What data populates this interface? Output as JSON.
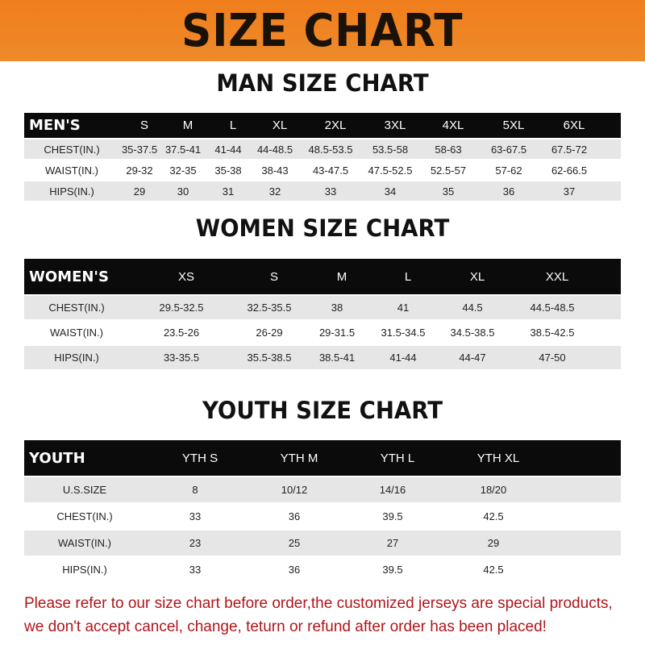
{
  "banner": {
    "title": "SIZE CHART"
  },
  "colors": {
    "banner": "#f07e1c",
    "header_row": "#0b0b0b",
    "note_text": "#b0151a"
  },
  "men": {
    "title": "MAN SIZE CHART",
    "header": [
      "MEN'S",
      "S",
      "M",
      "L",
      "XL",
      "2XL",
      "3XL",
      "4XL",
      "5XL",
      "6XL"
    ],
    "rows": [
      [
        "CHEST(IN.)",
        "35-37.5",
        "37.5-41",
        "41-44",
        "44-48.5",
        "48.5-53.5",
        "53.5-58",
        "58-63",
        "63-67.5",
        "67.5-72"
      ],
      [
        "WAIST(IN.)",
        "29-32",
        "32-35",
        "35-38",
        "38-43",
        "43-47.5",
        "47.5-52.5",
        "52.5-57",
        "57-62",
        "62-66.5"
      ],
      [
        "HIPS(IN.)",
        "29",
        "30",
        "31",
        "32",
        "33",
        "34",
        "35",
        "36",
        "37"
      ]
    ]
  },
  "women": {
    "title": "WOMEN SIZE CHART",
    "header": [
      "WOMEN'S",
      "XS",
      "S",
      "M",
      "L",
      "XL",
      "XXL"
    ],
    "rows": [
      [
        "CHEST(IN.)",
        "29.5-32.5",
        "32.5-35.5",
        "38",
        "41",
        "44.5",
        "44.5-48.5"
      ],
      [
        "WAIST(IN.)",
        "23.5-26",
        "26-29",
        "29-31.5",
        "31.5-34.5",
        "34.5-38.5",
        "38.5-42.5"
      ],
      [
        "HIPS(IN.)",
        "33-35.5",
        "35.5-38.5",
        "38.5-41",
        "41-44",
        "44-47",
        "47-50"
      ]
    ]
  },
  "youth": {
    "title": "YOUTH SIZE CHART",
    "header": [
      "YOUTH",
      "YTH S",
      "YTH M",
      "YTH L",
      "YTH XL"
    ],
    "rows": [
      [
        "U.S.SIZE",
        "8",
        "10/12",
        "14/16",
        "18/20"
      ],
      [
        "CHEST(IN.)",
        "33",
        "36",
        "39.5",
        "42.5"
      ],
      [
        "WAIST(IN.)",
        "23",
        "25",
        "27",
        "29"
      ],
      [
        "HIPS(IN.)",
        "33",
        "36",
        "39.5",
        "42.5"
      ]
    ]
  },
  "note": {
    "line1": "Please refer to our size chart before order,the customized jerseys are special products,",
    "line2": "we don't accept cancel, change, teturn or refund after order has been placed!"
  }
}
